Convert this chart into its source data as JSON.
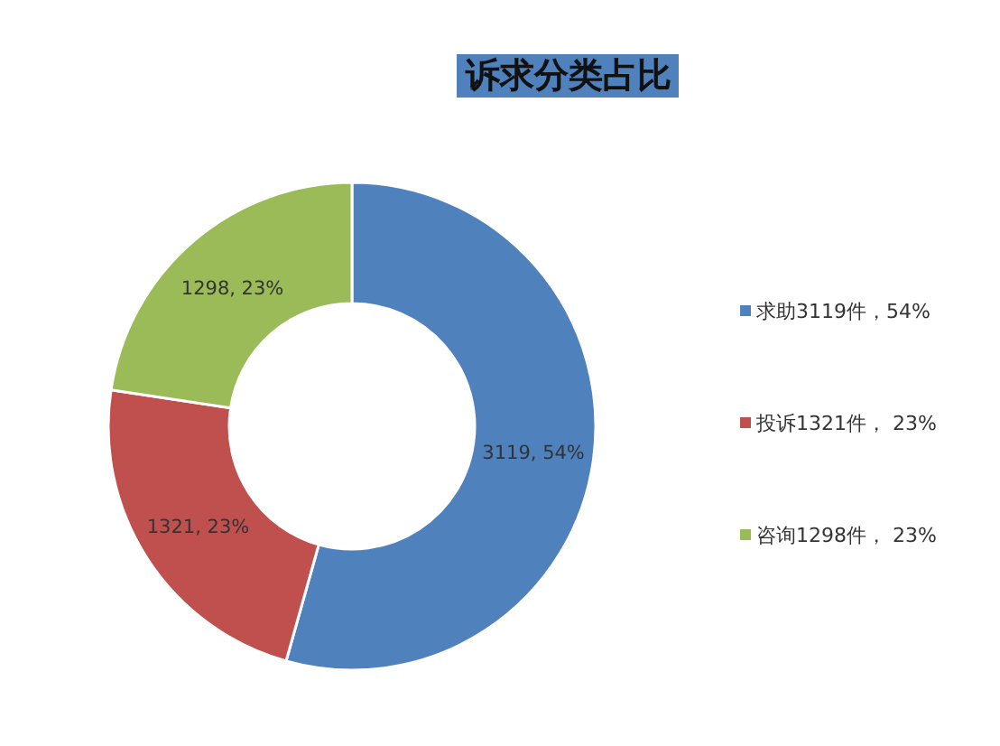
{
  "chart_data": {
    "type": "donut",
    "title": "诉求分类占比",
    "categories": [
      "求助3119件，54%",
      "投诉1321件， 23%",
      "咨询1298件， 23%"
    ],
    "values": [
      3119,
      1321,
      1298
    ],
    "colors": [
      "#4f81bd",
      "#c0504d",
      "#9bbb59"
    ],
    "value_labels": [
      "3119, 54%",
      "1321, 23%",
      "1298, 23%"
    ],
    "legend": "right"
  }
}
